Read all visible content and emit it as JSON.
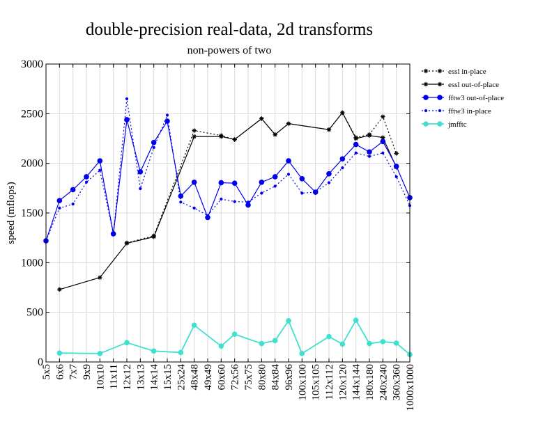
{
  "chart_data": {
    "type": "line",
    "title": "double-precision real-data, 2d transforms",
    "subtitle": "non-powers of two",
    "xlabel": "",
    "ylabel": "speed (mflops)",
    "ylim": [
      0,
      3000
    ],
    "yticks": [
      0,
      500,
      1000,
      1500,
      2000,
      2500,
      3000
    ],
    "grid": true,
    "legend_position": "right",
    "categories": [
      "5x5",
      "6x6",
      "7x7",
      "9x9",
      "10x10",
      "11x11",
      "12x12",
      "13x13",
      "14x14",
      "15x15",
      "25x24",
      "48x48",
      "49x49",
      "60x60",
      "72x56",
      "75x75",
      "80x80",
      "84x84",
      "96x96",
      "100x100",
      "105x105",
      "112x112",
      "120x120",
      "144x144",
      "180x180",
      "240x240",
      "360x360",
      "1000x1000"
    ],
    "series": [
      {
        "name": "essl in-place",
        "color": "#000000",
        "dash": "2,3",
        "marker": "asterisk",
        "values": [
          null,
          null,
          null,
          null,
          null,
          null,
          1200,
          null,
          1270,
          null,
          null,
          2330,
          null,
          2280,
          2240,
          null,
          2450,
          2290,
          2400,
          null,
          null,
          2340,
          2510,
          2260,
          2290,
          2470,
          2100,
          null
        ]
      },
      {
        "name": "essl out-of-place",
        "color": "#000000",
        "dash": "",
        "marker": "asterisk",
        "values": [
          null,
          730,
          null,
          null,
          850,
          null,
          1195,
          null,
          1260,
          null,
          null,
          2270,
          null,
          2270,
          2240,
          null,
          2450,
          2290,
          2400,
          null,
          null,
          2340,
          2510,
          2250,
          2280,
          2260,
          1960,
          null
        ]
      },
      {
        "name": "fftw3 out-of-place",
        "color": "#0000ee",
        "dash": "",
        "marker": "dot-large",
        "values": [
          1220,
          1625,
          1735,
          1865,
          2025,
          1290,
          2440,
          1915,
          2210,
          2425,
          1670,
          1810,
          1455,
          1805,
          1800,
          1580,
          1810,
          1865,
          2025,
          1845,
          1710,
          1895,
          2045,
          2190,
          2115,
          2220,
          1970,
          1655
        ]
      },
      {
        "name": "fftw3 in-place",
        "color": "#0000ee",
        "dash": "2,3",
        "marker": "dot-small",
        "values": [
          1220,
          1550,
          1590,
          1810,
          1930,
          1290,
          2650,
          1745,
          2160,
          2485,
          1610,
          1550,
          1475,
          1640,
          1615,
          1610,
          1700,
          1770,
          1890,
          1700,
          1710,
          1805,
          1955,
          2105,
          2070,
          2105,
          1865,
          1575
        ]
      },
      {
        "name": "jmfftc",
        "color": "#40e0d0",
        "dash": "",
        "marker": "dot-large",
        "values": [
          null,
          90,
          null,
          null,
          85,
          null,
          195,
          null,
          110,
          null,
          95,
          370,
          null,
          160,
          280,
          null,
          185,
          215,
          415,
          85,
          null,
          255,
          180,
          420,
          185,
          205,
          190,
          75
        ]
      }
    ]
  }
}
